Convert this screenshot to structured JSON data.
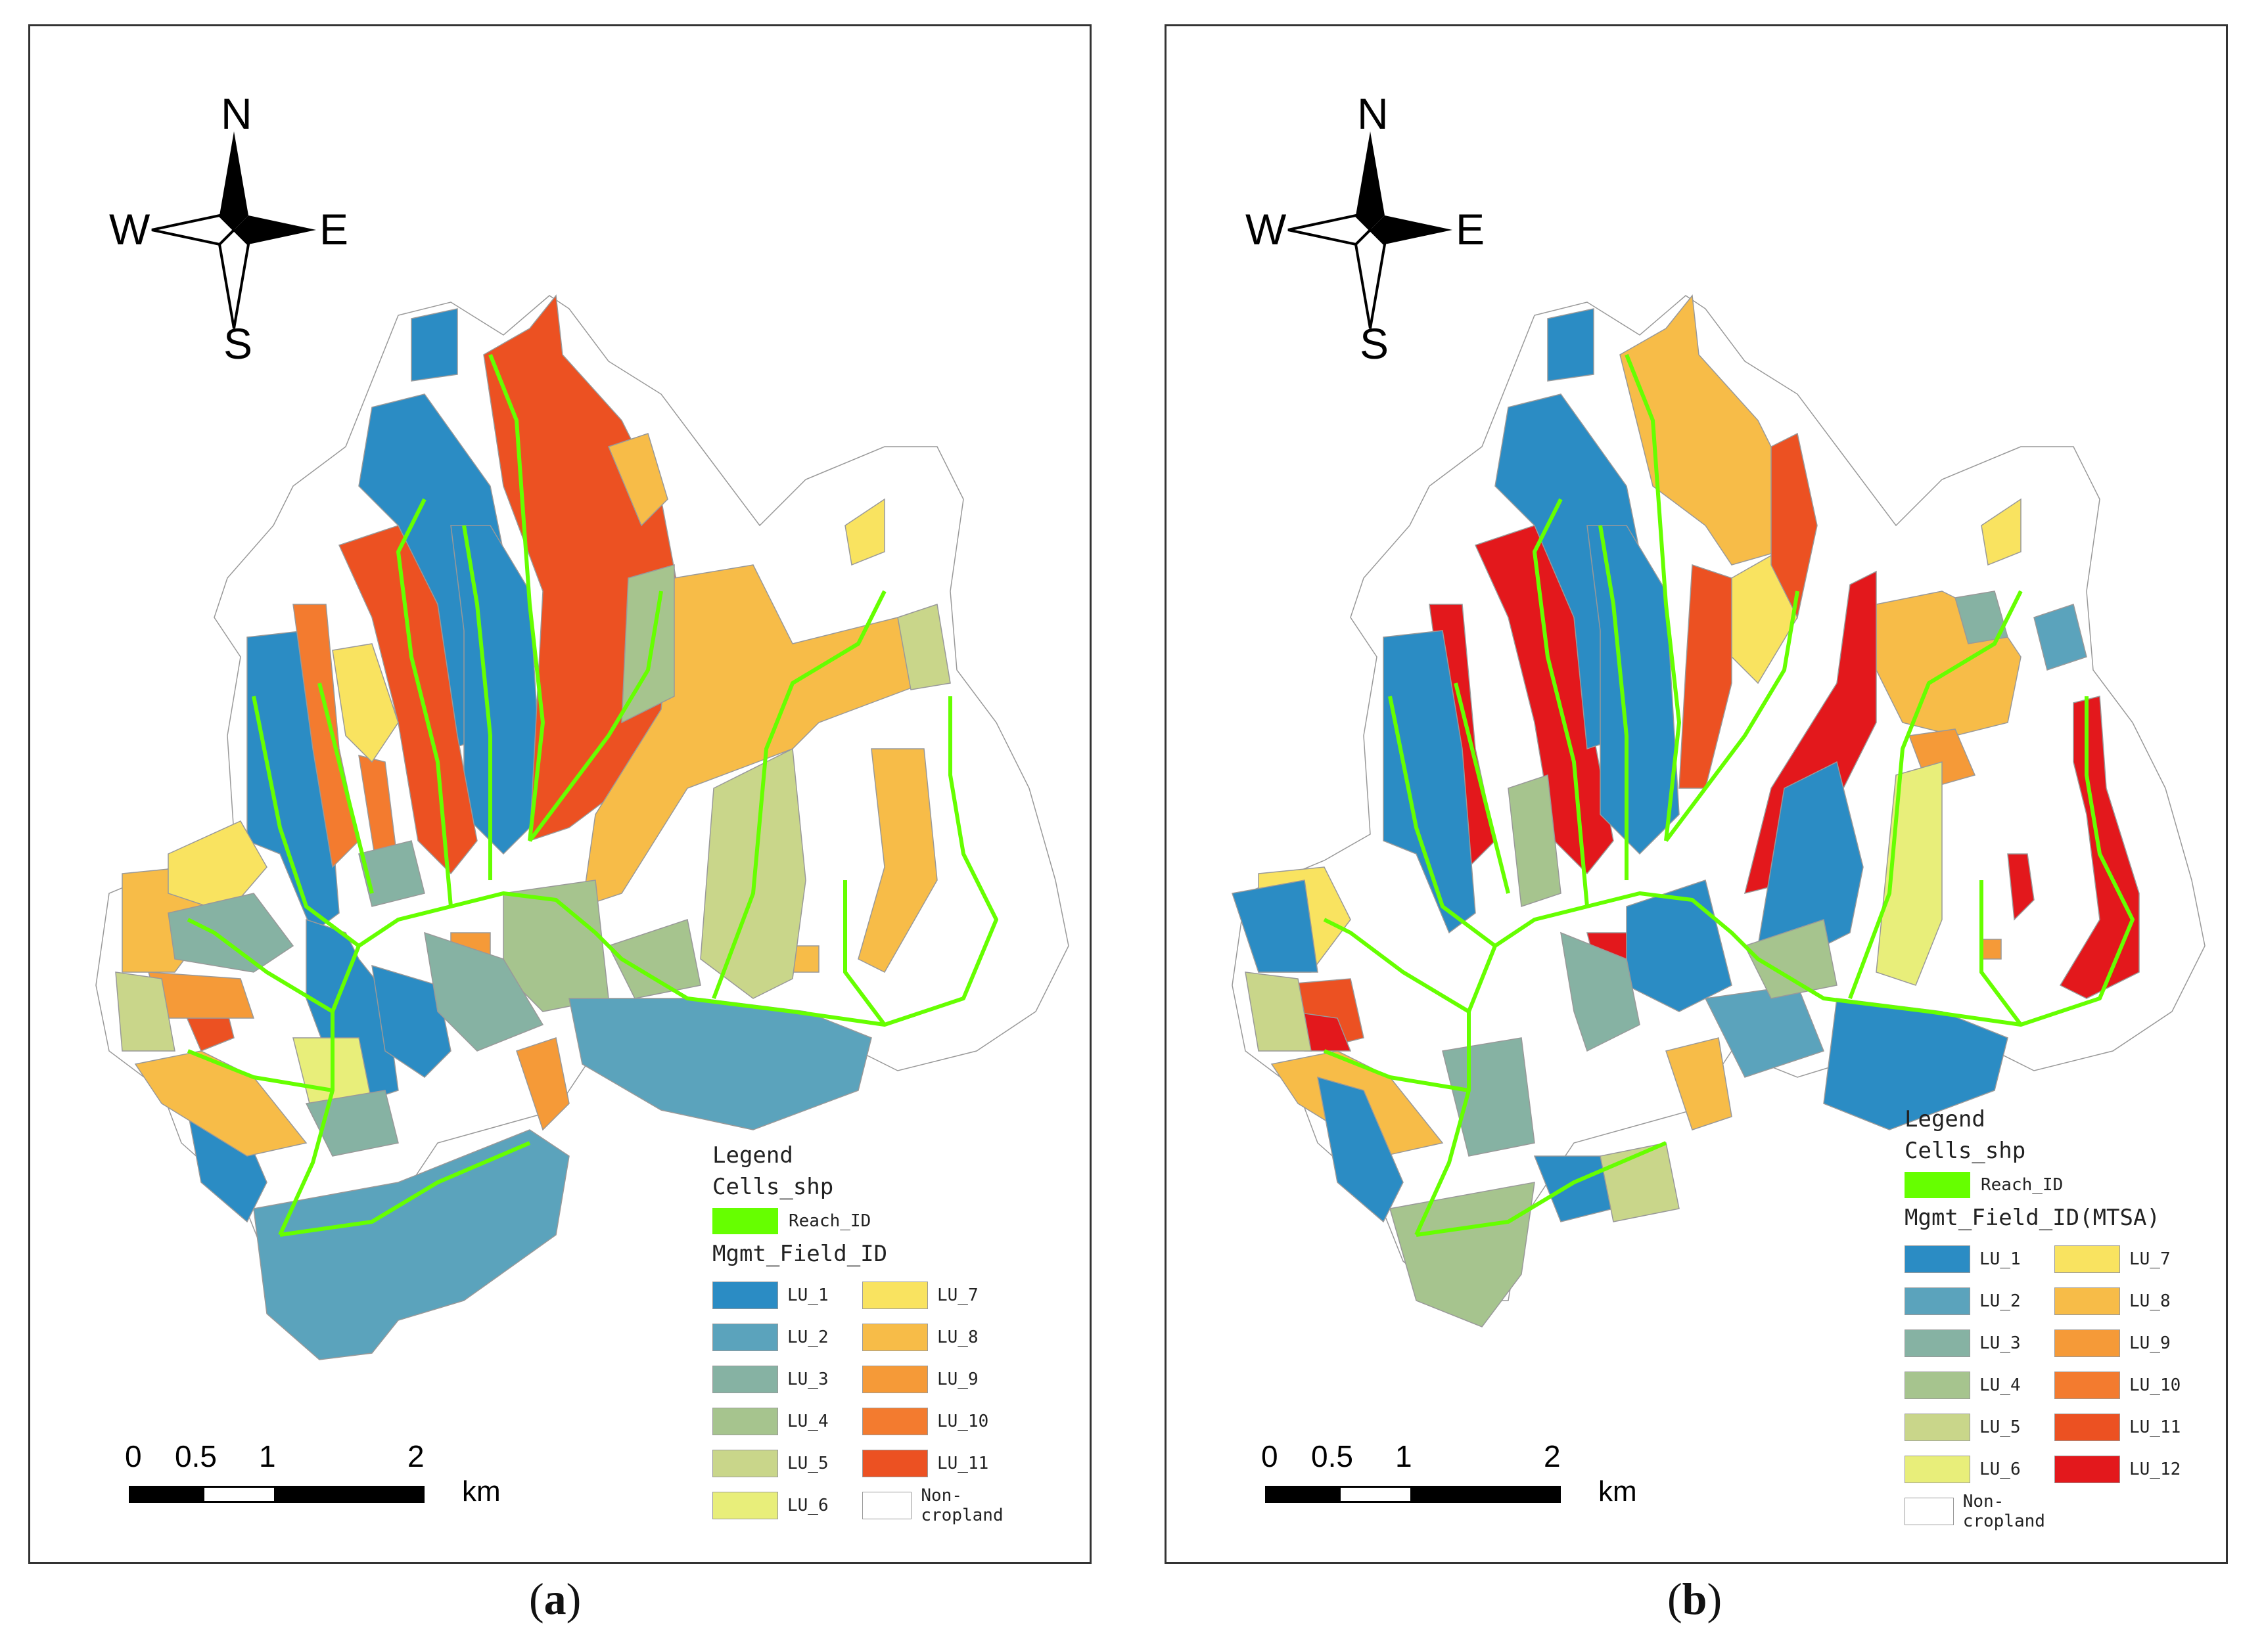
{
  "compass": {
    "n": "N",
    "s": "S",
    "e": "E",
    "w": "W"
  },
  "scale": {
    "ticks": [
      "0",
      "0.5",
      "1",
      "2"
    ],
    "unit": "km"
  },
  "panels": {
    "a": {
      "caption": "a",
      "legend": {
        "title": "Legend",
        "layer": "Cells_shp",
        "reach_label": "Reach_ID",
        "field_title": "Mgmt_Field_ID",
        "items": [
          {
            "label": "LU_1",
            "color": "#2b8cc4"
          },
          {
            "label": "LU_7",
            "color": "#f9e360"
          },
          {
            "label": "LU_2",
            "color": "#5ba3bc"
          },
          {
            "label": "LU_8",
            "color": "#f7bc48"
          },
          {
            "label": "LU_3",
            "color": "#86b2a3"
          },
          {
            "label": "LU_9",
            "color": "#f59a38"
          },
          {
            "label": "LU_4",
            "color": "#a6c48e"
          },
          {
            "label": "LU_10",
            "color": "#f37b2f"
          },
          {
            "label": "LU_5",
            "color": "#c9d68a"
          },
          {
            "label": "LU_11",
            "color": "#ec5122"
          },
          {
            "label": "LU_6",
            "color": "#e8ee7a"
          },
          {
            "label": "Non-cropland",
            "color": "#ffffff"
          }
        ]
      }
    },
    "b": {
      "caption": "b",
      "legend": {
        "title": "Legend",
        "layer": "Cells_shp",
        "reach_label": "Reach_ID",
        "field_title": "Mgmt_Field_ID(MTSA)",
        "items": [
          {
            "label": "LU_1",
            "color": "#2b8cc4"
          },
          {
            "label": "LU_7",
            "color": "#f9e360"
          },
          {
            "label": "LU_2",
            "color": "#5ba3bc"
          },
          {
            "label": "LU_8",
            "color": "#f7bc48"
          },
          {
            "label": "LU_3",
            "color": "#86b2a3"
          },
          {
            "label": "LU_9",
            "color": "#f59a38"
          },
          {
            "label": "LU_4",
            "color": "#a6c48e"
          },
          {
            "label": "LU_10",
            "color": "#f37b2f"
          },
          {
            "label": "LU_5",
            "color": "#c9d68a"
          },
          {
            "label": "LU_11",
            "color": "#ec5122"
          },
          {
            "label": "LU_6",
            "color": "#e8ee7a"
          },
          {
            "label": "LU_12",
            "color": "#e3181c"
          },
          {
            "label": "Non-cropland",
            "color": "#ffffff"
          }
        ]
      }
    }
  },
  "colors": {
    "reach": "#66ff00",
    "border": "#999999"
  }
}
